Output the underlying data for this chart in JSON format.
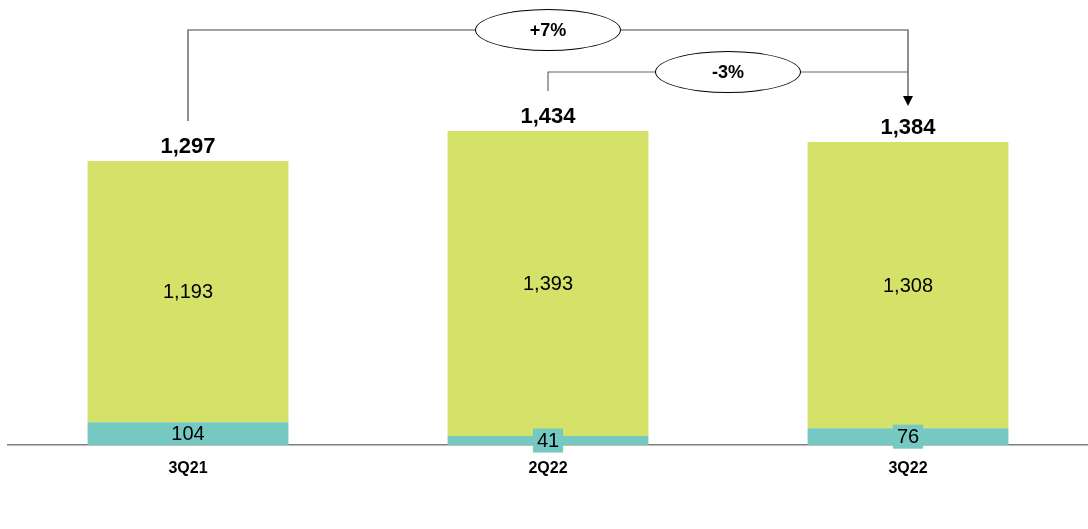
{
  "chart_data": {
    "type": "bar",
    "categories": [
      "3Q21",
      "2Q22",
      "3Q22"
    ],
    "stacked": true,
    "series": [
      {
        "color": "#76c8c2",
        "values": [
          104,
          41,
          76
        ],
        "value_labels": [
          "104",
          "41",
          "76"
        ]
      },
      {
        "color": "#d4e26a",
        "values": [
          1193,
          1393,
          1308
        ],
        "value_labels": [
          "1,193",
          "1,393",
          "1,308"
        ]
      }
    ],
    "totals": [
      "1,297",
      "1,434",
      "1,384"
    ],
    "annotations": [
      "+7%",
      "-3%"
    ]
  }
}
